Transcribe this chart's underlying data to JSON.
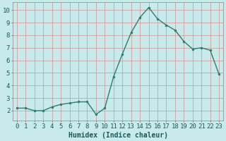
{
  "x": [
    0,
    1,
    2,
    3,
    4,
    5,
    6,
    7,
    8,
    9,
    10,
    11,
    12,
    13,
    14,
    15,
    16,
    17,
    18,
    19,
    20,
    21,
    22,
    23
  ],
  "y": [
    2.2,
    2.2,
    2.0,
    2.0,
    2.3,
    2.5,
    2.6,
    2.7,
    2.7,
    1.7,
    2.2,
    4.7,
    6.5,
    8.2,
    9.4,
    10.2,
    9.3,
    8.8,
    8.4,
    7.5,
    6.9,
    7.0,
    6.8,
    4.9
  ],
  "line_color": "#2e7d6e",
  "marker": "o",
  "marker_size": 2.0,
  "line_width": 1.0,
  "bg_color": "#c8eaea",
  "grid_color": "#d09090",
  "xlabel": "Humidex (Indice chaleur)",
  "xlabel_fontsize": 7,
  "tick_fontsize": 6.5,
  "xlim": [
    -0.5,
    23.5
  ],
  "ylim": [
    1.2,
    10.6
  ],
  "yticks": [
    2,
    3,
    4,
    5,
    6,
    7,
    8,
    9,
    10
  ],
  "xticks": [
    0,
    1,
    2,
    3,
    4,
    5,
    6,
    7,
    8,
    9,
    10,
    11,
    12,
    13,
    14,
    15,
    16,
    17,
    18,
    19,
    20,
    21,
    22,
    23
  ]
}
